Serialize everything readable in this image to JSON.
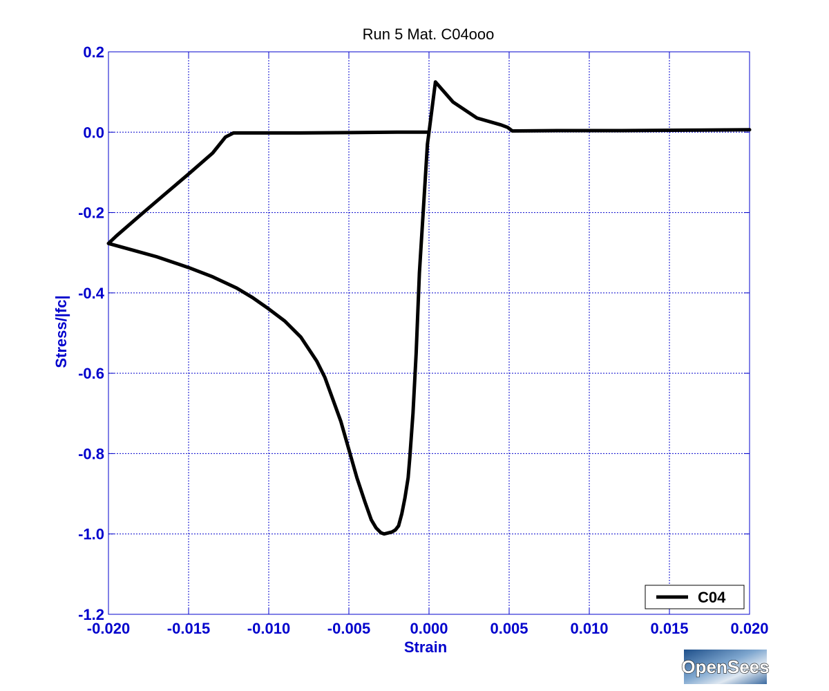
{
  "chart_data": {
    "type": "line",
    "title": "Run 5   Mat. C04ooo",
    "xlabel": "Strain",
    "ylabel": "Stress/|fc|",
    "xlim": [
      -0.02,
      0.02
    ],
    "ylim": [
      -1.2,
      0.2
    ],
    "xticks": [
      -0.02,
      -0.015,
      -0.01,
      -0.005,
      0.0,
      0.005,
      0.01,
      0.015,
      0.02
    ],
    "xtick_labels": [
      "-0.020",
      "-0.015",
      "-0.010",
      "-0.005",
      "0.000",
      "0.005",
      "0.010",
      "0.015",
      "0.020"
    ],
    "yticks": [
      0.2,
      0.0,
      -0.2,
      -0.4,
      -0.6,
      -0.8,
      -1.0,
      -1.2
    ],
    "ytick_labels": [
      "0.2",
      "0.0",
      "-0.2",
      "-0.4",
      "-0.6",
      "-0.8",
      "-1.0",
      "-1.2"
    ],
    "grid": true,
    "legend_position": "bottom-right",
    "series": [
      {
        "name": "C04",
        "color": "#000000",
        "x": [
          0.0,
          -0.0001,
          -0.0003,
          -0.0006,
          -0.0008,
          -0.001,
          -0.0012,
          -0.0013,
          -0.0015,
          -0.0017,
          -0.0019,
          -0.0021,
          -0.0023,
          -0.0026,
          -0.0028,
          -0.003,
          -0.0033,
          -0.0036,
          -0.004,
          -0.0045,
          -0.005,
          -0.0055,
          -0.006,
          -0.0065,
          -0.007,
          -0.008,
          -0.009,
          -0.01,
          -0.011,
          -0.012,
          -0.0135,
          -0.015,
          -0.017,
          -0.019,
          -0.02,
          -0.0195,
          -0.018,
          -0.0165,
          -0.015,
          -0.0135,
          -0.0127,
          -0.0122,
          -0.011,
          -0.008,
          -0.005,
          -0.002,
          0.0,
          0.0004,
          0.0015,
          0.003,
          0.0045,
          0.0049,
          0.0052,
          0.008,
          0.012,
          0.016,
          0.02
        ],
        "y": [
          0.0,
          -0.03,
          -0.16,
          -0.35,
          -0.55,
          -0.7,
          -0.81,
          -0.86,
          -0.91,
          -0.95,
          -0.98,
          -0.99,
          -0.995,
          -0.998,
          -1.0,
          -0.997,
          -0.985,
          -0.965,
          -0.92,
          -0.86,
          -0.79,
          -0.72,
          -0.665,
          -0.61,
          -0.57,
          -0.51,
          -0.47,
          -0.44,
          -0.412,
          -0.388,
          -0.36,
          -0.337,
          -0.31,
          -0.288,
          -0.277,
          -0.258,
          -0.206,
          -0.155,
          -0.104,
          -0.052,
          -0.012,
          -0.002,
          -0.002,
          -0.002,
          -0.001,
          0.0,
          0.0,
          0.125,
          0.075,
          0.035,
          0.018,
          0.012,
          0.003,
          0.004,
          0.004,
          0.005,
          0.006
        ]
      }
    ]
  },
  "logo": {
    "text": "OpenSees"
  }
}
